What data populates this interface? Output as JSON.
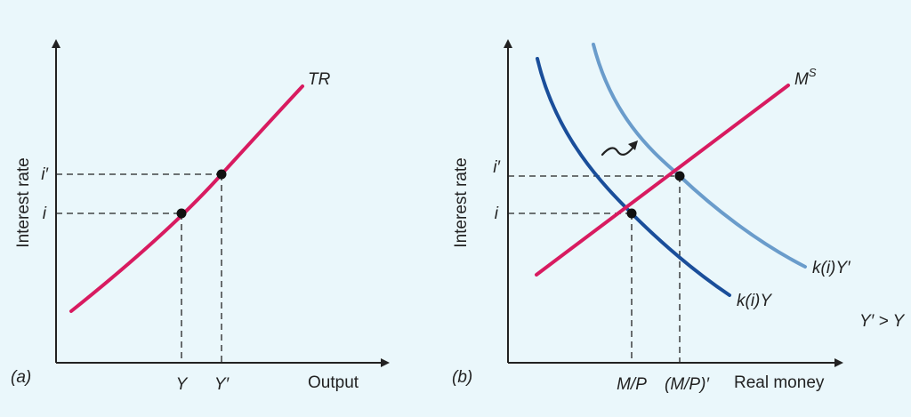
{
  "colors": {
    "background": "#eaf7fb",
    "tr_curve": "#d81b60",
    "money_supply": "#d81b60",
    "money_demand_y": "#1a4e9a",
    "money_demand_y_prime": "#6a9ccb",
    "axes": "#222222"
  },
  "panel_a": {
    "label": "(a)",
    "y_axis_label": "Interest rate",
    "x_axis_label": "Output",
    "curve_label": "TR",
    "y_ticks": [
      "i",
      "i′"
    ],
    "x_ticks": [
      "Y",
      "Y′"
    ]
  },
  "panel_b": {
    "label": "(b)",
    "y_axis_label": "Interest rate",
    "x_axis_label": "Real money",
    "supply_label_base": "M",
    "supply_label_sup": "S",
    "demand_label_y": "k(i)Y",
    "demand_label_y_prime": "k(i)Y′",
    "y_ticks": [
      "i",
      "i′"
    ],
    "x_ticks": [
      "M/P",
      "(M/P)′"
    ],
    "condition": "Y′ > Y",
    "shift_arrow_icon": "squiggle-arrow-icon"
  }
}
